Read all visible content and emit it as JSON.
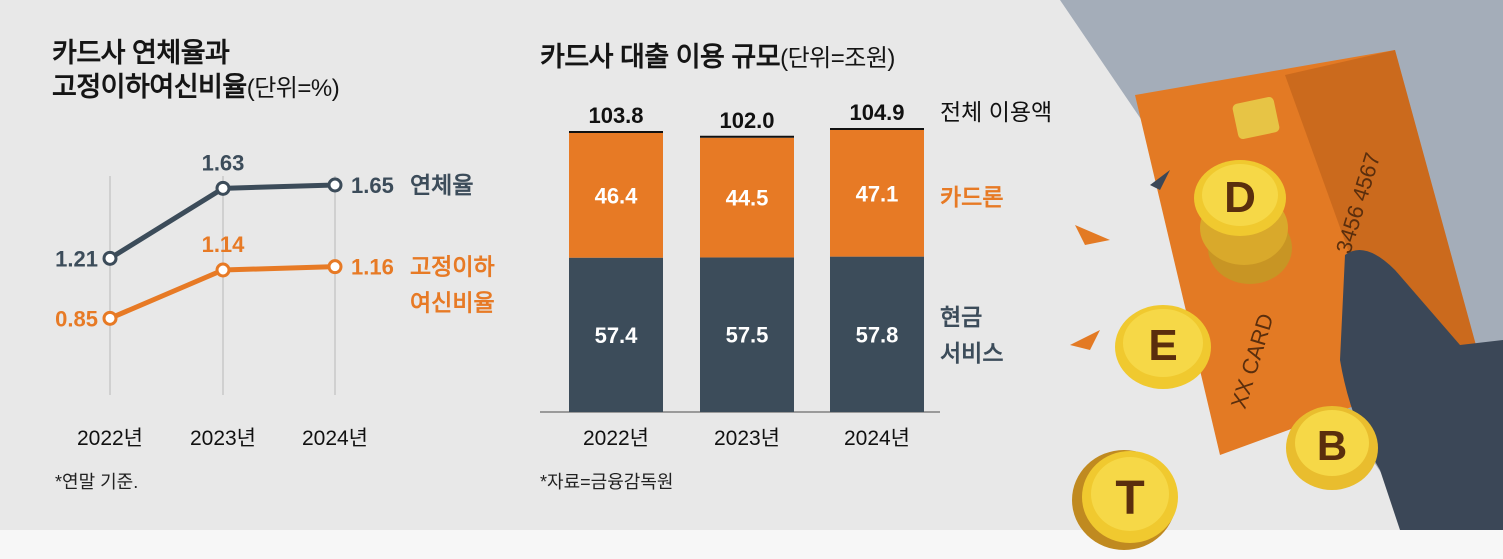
{
  "colors": {
    "navy": "#3c4c5a",
    "orange": "#e77a25",
    "background": "#e8e8e8",
    "text": "#151515"
  },
  "left_panel": {
    "title_line1": "카드사 연체율과",
    "title_line2": "고정이하여신비율",
    "title_unit": "(단위=%)",
    "footnote": "*연말 기준."
  },
  "right_panel": {
    "title": "카드사 대출 이용 규모",
    "title_unit": "(단위=조원)",
    "footnote": "*자료=금융감독원"
  },
  "illustration": {
    "card_number_fragment": "3456  4567",
    "card_brand": "XX CARD",
    "coins": [
      "D",
      "E",
      "B",
      "T"
    ],
    "icon": "credit-card-with-debt-coins-icon"
  },
  "chart_data": [
    {
      "type": "line",
      "title": "카드사 연체율과 고정이하여신비율",
      "unit": "%",
      "categories": [
        "2022년",
        "2023년",
        "2024년"
      ],
      "series": [
        {
          "name": "연체율",
          "values": [
            1.21,
            1.63,
            1.65
          ],
          "labels": [
            "1.21",
            "1.63",
            "1.65"
          ],
          "color": "#3c4c5a"
        },
        {
          "name": "고정이하 여신비율",
          "name_line1": "고정이하",
          "name_line2": "여신비율",
          "values": [
            0.85,
            1.14,
            1.16
          ],
          "labels": [
            "0.85",
            "1.14",
            "1.16"
          ],
          "color": "#e77a25"
        }
      ],
      "ylim": [
        0.6,
        1.8
      ],
      "footnote": "*연말 기준."
    },
    {
      "type": "bar",
      "stacked": true,
      "title": "카드사 대출 이용 규모",
      "unit": "조원",
      "categories": [
        "2022년",
        "2023년",
        "2024년"
      ],
      "series": [
        {
          "name": "현금 서비스",
          "name_line1": "현금",
          "name_line2": "서비스",
          "values": [
            57.4,
            57.5,
            57.8
          ],
          "labels": [
            "57.4",
            "57.5",
            "57.8"
          ],
          "color": "#3c4c5a"
        },
        {
          "name": "카드론",
          "values": [
            46.4,
            44.5,
            47.1
          ],
          "labels": [
            "46.4",
            "44.5",
            "47.1"
          ],
          "color": "#e77a25"
        }
      ],
      "totals": {
        "name": "전체 이용액",
        "values": [
          103.8,
          102.0,
          104.9
        ],
        "labels": [
          "103.8",
          "102.0",
          "104.9"
        ]
      },
      "ylim": [
        0,
        104.9
      ],
      "footnote": "*자료=금융감독원"
    }
  ]
}
